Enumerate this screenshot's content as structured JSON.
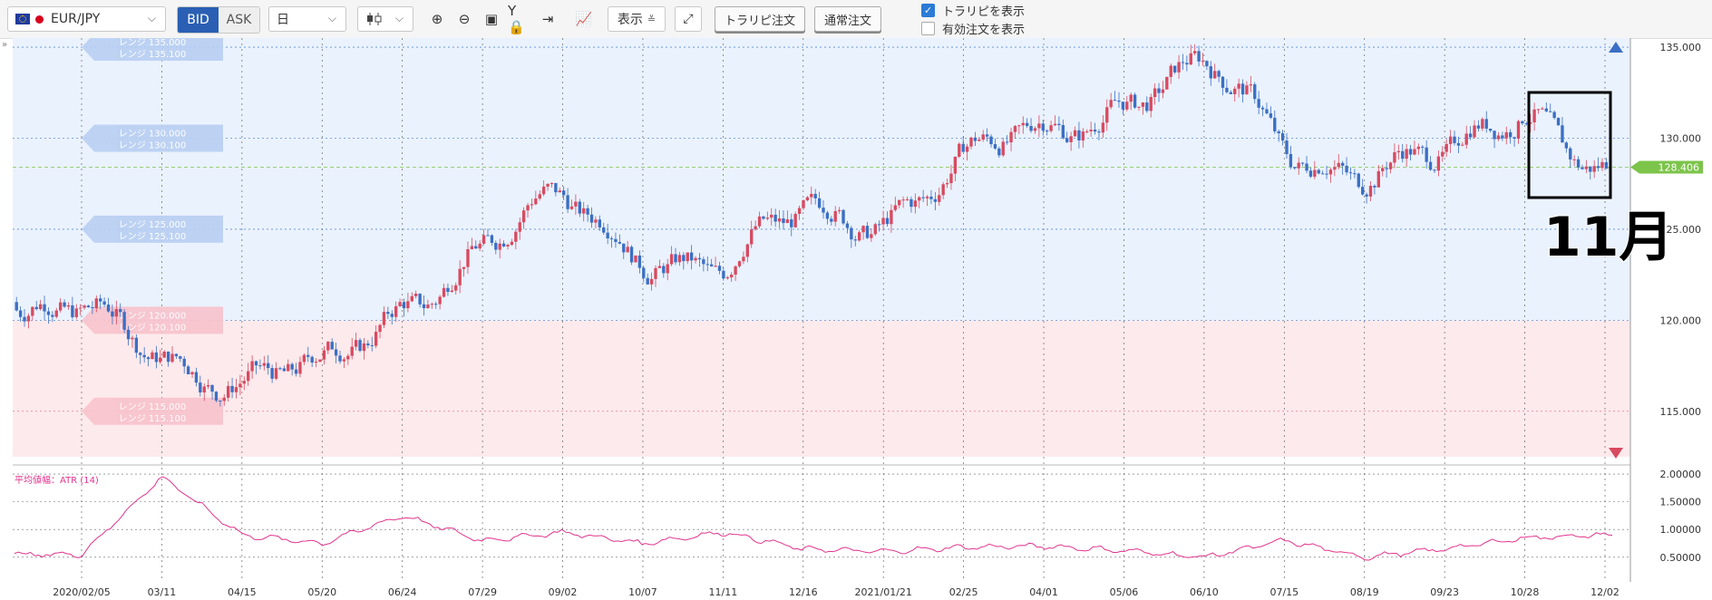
{
  "toolbar": {
    "pair": "EUR/JPY",
    "bid_label": "BID",
    "ask_label": "ASK",
    "period": "日",
    "display_label": "表示",
    "trap_order_label": "トラリピ注文",
    "normal_order_label": "通常注文",
    "show_trap_label": "トラリピを表示",
    "show_trap_checked": true,
    "show_active_label": "有効注文を表示",
    "show_active_checked": false
  },
  "main_chart": {
    "current_price": "128.406",
    "y_ticks": [
      "135.000",
      "130.000",
      "125.000",
      "120.000",
      "115.000"
    ],
    "annotation": "11月",
    "ranges": [
      {
        "line1": "レンジ 135.000",
        "line2": "レンジ 135.100"
      },
      {
        "line1": "レンジ 130.000",
        "line2": "レンジ 130.100"
      },
      {
        "line1": "レンジ 125.000",
        "line2": "レンジ 125.100"
      },
      {
        "line1": "レンジ 120.000",
        "line2": "レンジ 120.100"
      },
      {
        "line1": "レンジ 115.000",
        "line2": "レンジ 115.100"
      }
    ],
    "colors": {
      "up": "#d84a60",
      "down": "#3b6fc4",
      "buy_zone": "#eaf2fd",
      "sell_zone": "#fdeaec",
      "price_tag": "#7cc44a"
    }
  },
  "sub_chart": {
    "label": "平均値幅：ATR (14)",
    "y_ticks": [
      "2.00000",
      "1.50000",
      "1.00000",
      "0.50000"
    ],
    "line_color": "#e0358e"
  },
  "x_axis": {
    "labels": [
      "2020/02/05",
      "03/11",
      "04/15",
      "05/20",
      "06/24",
      "07/29",
      "09/02",
      "10/07",
      "11/11",
      "12/16",
      "2021/01/21",
      "02/25",
      "04/01",
      "05/06",
      "06/10",
      "07/15",
      "08/19",
      "09/23",
      "10/28",
      "12/02"
    ]
  },
  "chart_data": {
    "type": "candlestick",
    "pair": "EUR/JPY",
    "series": [
      {
        "name": "EUR/JPY",
        "x": [
          "2020/02/05",
          "03/11",
          "04/15",
          "05/20",
          "06/24",
          "07/29",
          "09/02",
          "10/07",
          "11/11",
          "12/16",
          "2021/01/21",
          "02/25",
          "04/01",
          "05/06",
          "06/10",
          "07/15",
          "08/19",
          "09/23",
          "10/28",
          "12/02"
        ],
        "values": [
          120.0,
          118.5,
          116.5,
          117.0,
          121.5,
          124.0,
          126.5,
          124.0,
          122.5,
          126.0,
          126.0,
          128.5,
          130.5,
          132.5,
          133.5,
          129.5,
          128.5,
          128.5,
          132.0,
          128.4
        ]
      },
      {
        "name": "ATR (14)",
        "x": [
          "2020/02/05",
          "03/11",
          "04/15",
          "05/20",
          "06/24",
          "07/29",
          "09/02",
          "10/07",
          "11/11",
          "12/16",
          "2021/01/21",
          "02/25",
          "04/01",
          "05/06",
          "06/10",
          "07/15",
          "08/19",
          "09/23",
          "10/28",
          "12/02"
        ],
        "values": [
          0.55,
          1.95,
          0.9,
          0.75,
          1.25,
          0.8,
          0.95,
          0.75,
          0.95,
          0.65,
          0.6,
          0.68,
          0.7,
          0.62,
          0.5,
          0.8,
          0.5,
          0.65,
          0.85,
          0.9
        ]
      }
    ],
    "ylim": [
      112.5,
      135.5
    ],
    "atr_ylim": [
      0.3,
      2.05
    ],
    "last_price": 128.406,
    "grid": true
  }
}
